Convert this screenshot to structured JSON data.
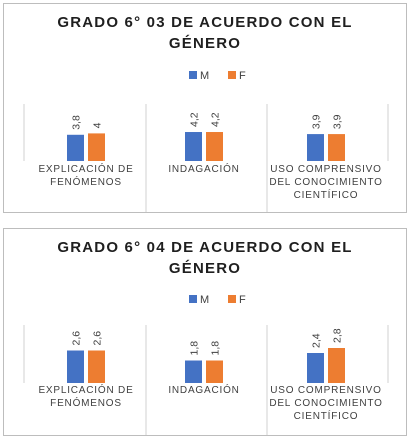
{
  "colors": {
    "M": "#4472c4",
    "F": "#ed7d31",
    "divider": "#d0d0d0",
    "text": "#404040"
  },
  "chart_data": [
    {
      "type": "bar",
      "title_line1": "GRADO 6° 03 DE ACUERDO CON EL",
      "title_line2": "GÉNERO",
      "legend": [
        "M",
        "F"
      ],
      "legend_position": "top",
      "categories": [
        {
          "line1": "EXPLICACIÓN DE",
          "line2": "FENÓMENOS",
          "line3": ""
        },
        {
          "line1": "INDAGACIÓN",
          "line2": "",
          "line3": ""
        },
        {
          "line1": "USO COMPRENSIVO",
          "line2": "DEL CONOCIMIENTO",
          "line3": "CIENTÍFICO"
        }
      ],
      "series": [
        {
          "name": "M",
          "values": [
            3.8,
            4.2,
            3.9
          ],
          "labels": [
            "3,8",
            "4,2",
            "3,9"
          ]
        },
        {
          "name": "F",
          "values": [
            4,
            4.2,
            3.9
          ],
          "labels": [
            "4",
            "4,2",
            "3,9"
          ]
        }
      ]
    },
    {
      "type": "bar",
      "title_line1": "GRADO 6° 04 DE ACUERDO CON EL",
      "title_line2": "GÉNERO",
      "legend": [
        "M",
        "F"
      ],
      "legend_position": "top",
      "categories": [
        {
          "line1": "EXPLICACIÓN DE",
          "line2": "FENÓMENOS",
          "line3": ""
        },
        {
          "line1": "INDAGACIÓN",
          "line2": "",
          "line3": ""
        },
        {
          "line1": "USO COMPRENSIVO",
          "line2": "DEL CONOCIMIENTO",
          "line3": "CIENTÍFICO"
        }
      ],
      "series": [
        {
          "name": "M",
          "values": [
            2.6,
            1.8,
            2.4
          ],
          "labels": [
            "2,6",
            "1,8",
            "2,4"
          ]
        },
        {
          "name": "F",
          "values": [
            2.6,
            1.8,
            2.8
          ],
          "labels": [
            "2,6",
            "1,8",
            "2,8"
          ]
        }
      ]
    }
  ]
}
